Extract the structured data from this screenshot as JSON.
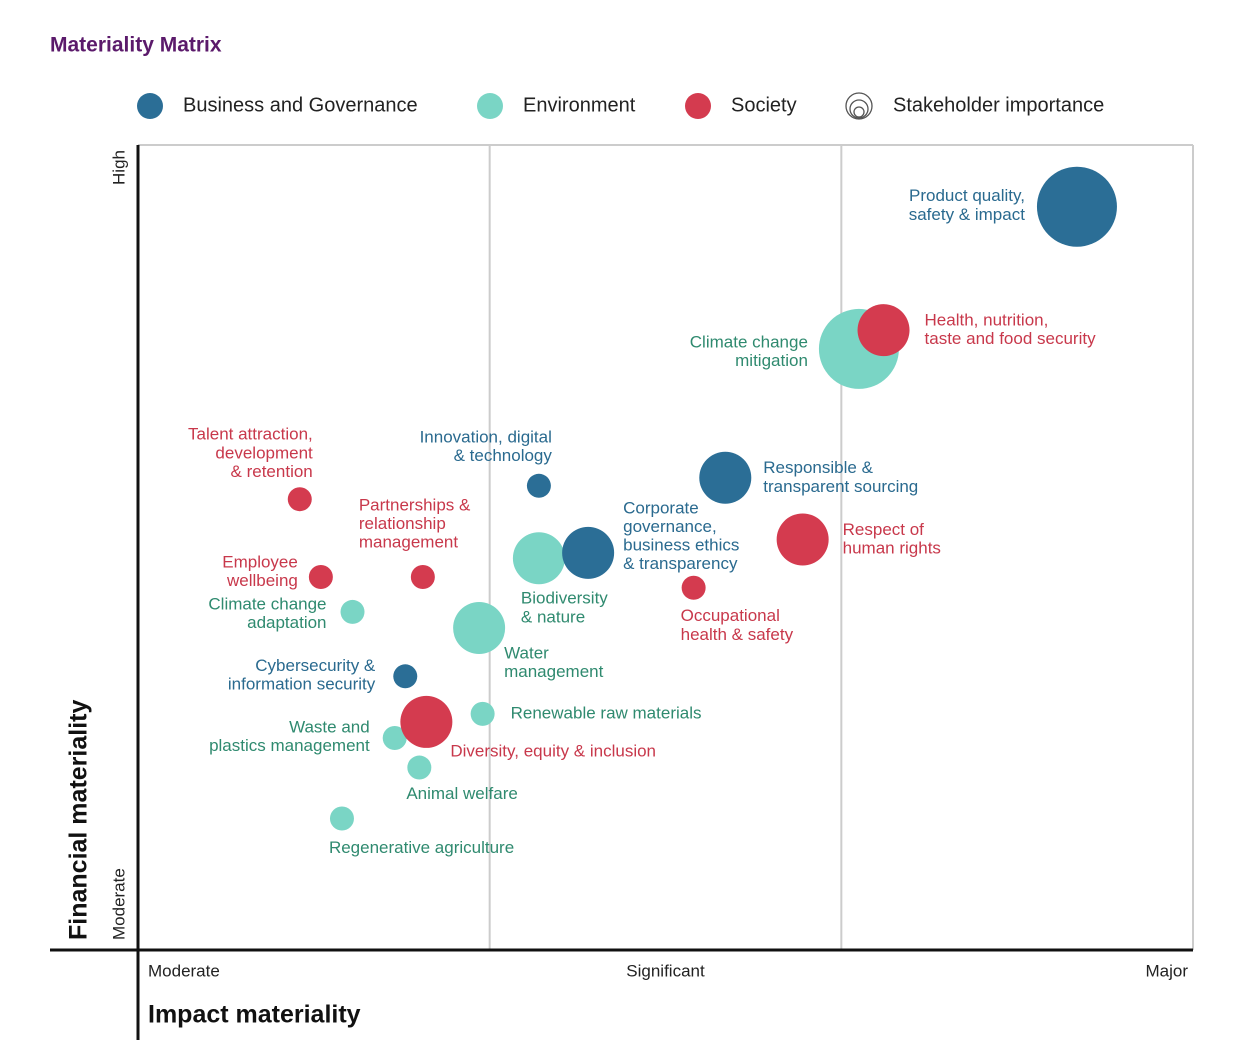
{
  "chart_data": {
    "type": "scatter",
    "title": "Materiality Matrix",
    "x_label": "Impact materiality",
    "y_label": "Financial materiality",
    "size_legend": "Stakeholder importance",
    "xlim": [
      0,
      3
    ],
    "ylim": [
      0,
      3
    ],
    "xticks": [
      {
        "value": 0,
        "label": "Moderate"
      },
      {
        "value": 1.5,
        "label": "Significant"
      },
      {
        "value": 3,
        "label": "Major"
      }
    ],
    "yticks": [
      {
        "value": 0,
        "label": "Moderate"
      },
      {
        "value": 3,
        "label": "High"
      }
    ],
    "xgrid": [
      1,
      2
    ],
    "series": [
      {
        "name": "Business and Governance",
        "color": "#2b6e96",
        "label_color": "#2a6a8f",
        "x": [
          2.67,
          1.67,
          1.28,
          1.14,
          0.76
        ],
        "y": [
          2.77,
          1.76,
          1.48,
          1.73,
          1.02
        ],
        "sizes": [
          10,
          6.5,
          6.5,
          3,
          3
        ],
        "labels": [
          [
            "Product quality,",
            "safety & impact"
          ],
          [
            "Responsible &",
            "transparent sourcing"
          ],
          [
            "Corporate",
            "governance,",
            "business ethics",
            "& transparency"
          ],
          [
            "Innovation, digital",
            "& technology"
          ],
          [
            "Cybersecurity &",
            "information security"
          ]
        ]
      },
      {
        "name": "Environment",
        "color": "#7ad5c5",
        "label_color": "#2f8a6f",
        "x": [
          2.05,
          1.14,
          0.61,
          0.97,
          0.98,
          0.73,
          0.8,
          0.58
        ],
        "y": [
          2.24,
          1.46,
          1.26,
          1.2,
          0.88,
          0.79,
          0.68,
          0.49
        ],
        "sizes": [
          10,
          6.5,
          3,
          6.5,
          3,
          3,
          3,
          3
        ],
        "labels": [
          [
            "Climate change",
            "mitigation"
          ],
          [
            "Biodiversity",
            "& nature"
          ],
          [
            "Climate change",
            "adaptation"
          ],
          [
            "Water",
            "management"
          ],
          [
            "Renewable raw materials"
          ],
          [
            "Waste and",
            "plastics management"
          ],
          [
            "Animal welfare"
          ],
          [
            "Regenerative agriculture"
          ]
        ]
      },
      {
        "name": "Society",
        "color": "#d43b4f",
        "label_color": "#c8384b",
        "x": [
          2.12,
          1.89,
          1.58,
          0.46,
          0.81,
          0.52,
          0.82
        ],
        "y": [
          2.31,
          1.53,
          1.35,
          1.68,
          1.39,
          1.39,
          0.85
        ],
        "sizes": [
          6.5,
          6.5,
          3,
          3,
          3,
          3,
          6.5
        ],
        "labels": [
          [
            "Health, nutrition,",
            "taste and food security"
          ],
          [
            "Respect of",
            "human rights"
          ],
          [
            "Occupational",
            "health & safety"
          ],
          [
            "Talent attraction,",
            "development",
            "& retention"
          ],
          [
            "Partnerships &",
            "relationship",
            "management"
          ],
          [
            "Employee",
            "wellbeing"
          ],
          [
            "Diversity, equity & inclusion"
          ]
        ]
      }
    ]
  }
}
